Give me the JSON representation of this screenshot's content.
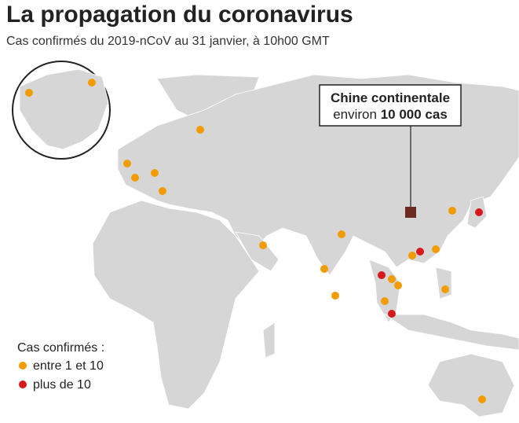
{
  "header": {
    "title": "La propagation du coronavirus",
    "subtitle": "Cas confirmés du 2019-nCoV au 31 janvier, à 10h00 GMT"
  },
  "callout": {
    "name": "Chine continentale",
    "prefix": "environ",
    "cases": "10 000 cas"
  },
  "legend": {
    "title": "Cas confirmés :",
    "items": [
      {
        "label": "entre 1 et 10",
        "color": "#f29c00"
      },
      {
        "label": "plus de 10",
        "color": "#d7191c"
      }
    ]
  }
}
